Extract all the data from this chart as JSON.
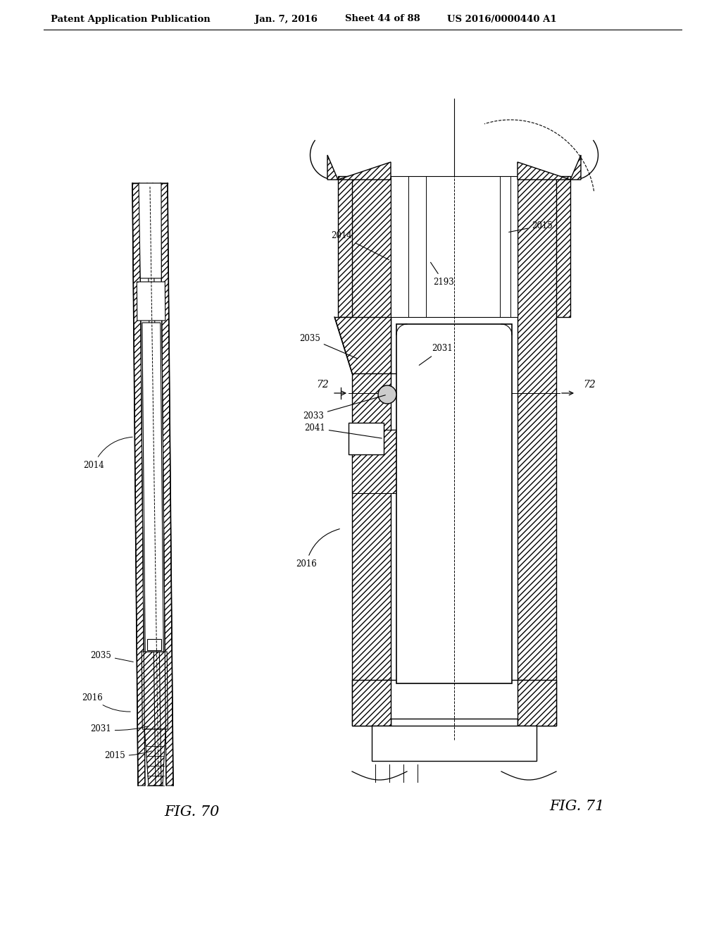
{
  "bg_color": "#ffffff",
  "header_text": "Patent Application Publication",
  "header_date": "Jan. 7, 2016",
  "header_sheet": "Sheet 44 of 88",
  "header_patent": "US 2016/0000440 A1",
  "fig70_label": "FIG. 70",
  "fig71_label": "FIG. 71"
}
